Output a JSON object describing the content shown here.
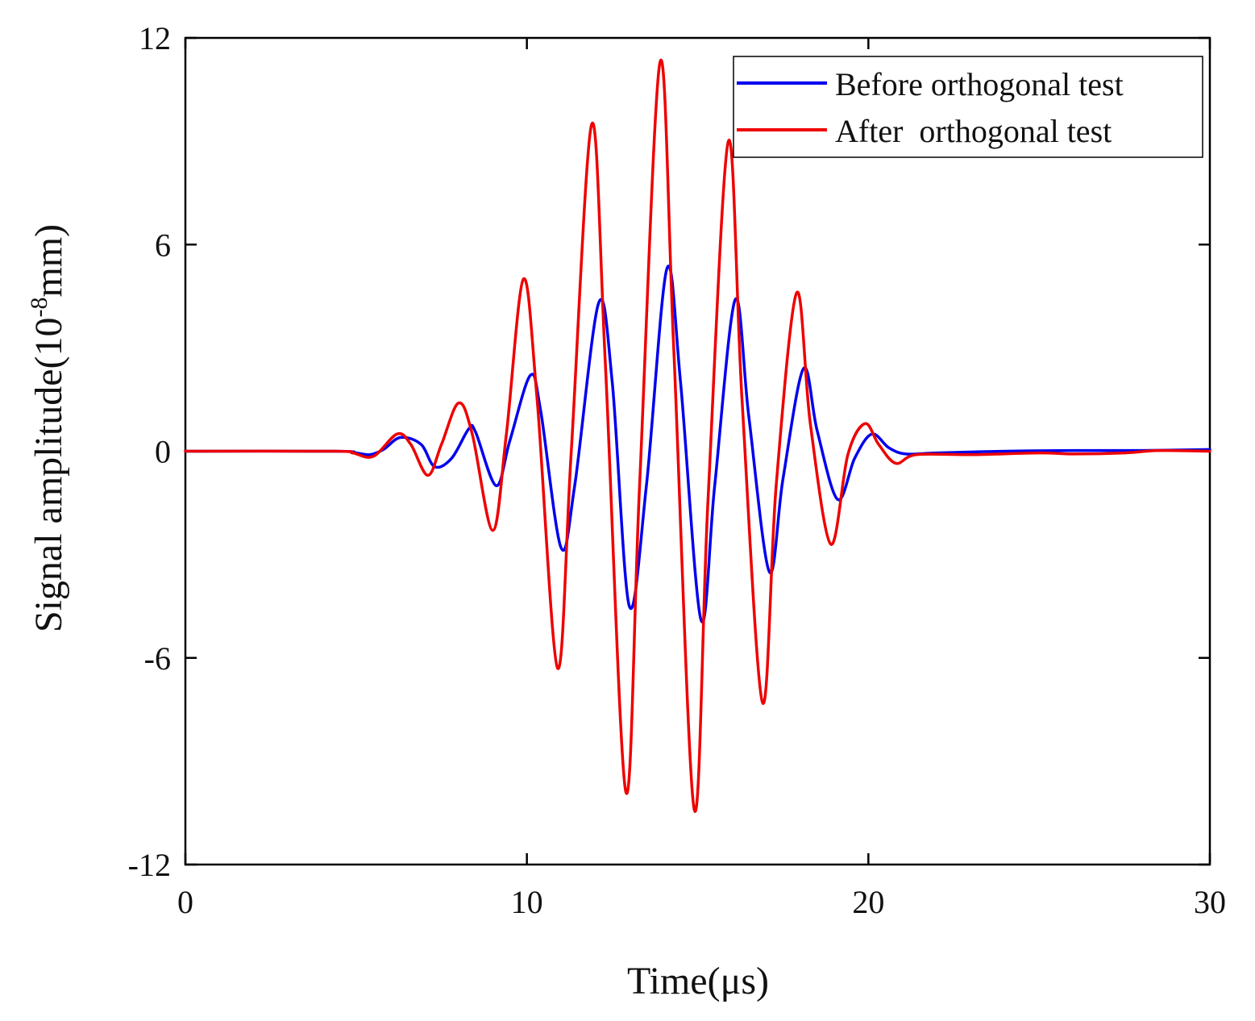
{
  "chart_data": {
    "type": "line",
    "title": "",
    "xlabel": "Time(μs)",
    "ylabel": "Signal amplitude(10",
    "ylabel_sup": "-8",
    "ylabel_tail": "mm)",
    "xlim": [
      0,
      30
    ],
    "ylim": [
      -12,
      12
    ],
    "xticks": [
      0,
      10,
      20,
      30
    ],
    "xtick_labels": [
      "0",
      "10",
      "20",
      "30"
    ],
    "yticks": [
      -12,
      -6,
      0,
      6,
      12
    ],
    "ytick_labels": [
      "-12",
      "-6",
      "0",
      "6",
      "12"
    ],
    "grid": false,
    "legend_position": "top-right",
    "series": [
      {
        "name": "Before orthogonal test",
        "color": "#0000ee",
        "points": [
          [
            0,
            0
          ],
          [
            4.4,
            0
          ],
          [
            5.0,
            -0.05
          ],
          [
            5.4,
            -0.1
          ],
          [
            5.8,
            0.05
          ],
          [
            6.3,
            0.4
          ],
          [
            6.9,
            0.2
          ],
          [
            7.3,
            -0.45
          ],
          [
            7.8,
            -0.2
          ],
          [
            8.3,
            0.65
          ],
          [
            8.5,
            0.55
          ],
          [
            9.1,
            -1.0
          ],
          [
            9.5,
            0.3
          ],
          [
            10.1,
            2.2
          ],
          [
            10.4,
            1.2
          ],
          [
            11.0,
            -2.8
          ],
          [
            11.4,
            -1.0
          ],
          [
            12.1,
            4.3
          ],
          [
            12.5,
            2.0
          ],
          [
            13.0,
            -4.5
          ],
          [
            13.5,
            -1.0
          ],
          [
            14.1,
            5.3
          ],
          [
            14.5,
            2.0
          ],
          [
            15.1,
            -4.9
          ],
          [
            15.5,
            -1.0
          ],
          [
            16.1,
            4.4
          ],
          [
            16.5,
            1.0
          ],
          [
            17.1,
            -3.5
          ],
          [
            17.5,
            -0.8
          ],
          [
            18.1,
            2.4
          ],
          [
            18.5,
            0.6
          ],
          [
            19.1,
            -1.4
          ],
          [
            19.6,
            -0.2
          ],
          [
            20.1,
            0.5
          ],
          [
            20.6,
            0.1
          ],
          [
            21.1,
            -0.08
          ],
          [
            22.0,
            -0.05
          ],
          [
            24.0,
            0
          ],
          [
            26.0,
            0.02
          ],
          [
            28.0,
            0.02
          ],
          [
            30.0,
            0.05
          ]
        ]
      },
      {
        "name": "After  orthogonal test",
        "color": "#ee0000",
        "points": [
          [
            0,
            0
          ],
          [
            4.4,
            0
          ],
          [
            4.9,
            -0.05
          ],
          [
            5.5,
            -0.15
          ],
          [
            6.2,
            0.5
          ],
          [
            6.6,
            0.2
          ],
          [
            7.1,
            -0.7
          ],
          [
            7.5,
            0.2
          ],
          [
            8.0,
            1.4
          ],
          [
            8.4,
            0.5
          ],
          [
            9.0,
            -2.3
          ],
          [
            9.4,
            0.5
          ],
          [
            9.9,
            5.0
          ],
          [
            10.3,
            1.5
          ],
          [
            10.9,
            -6.3
          ],
          [
            11.3,
            0.0
          ],
          [
            11.9,
            9.5
          ],
          [
            12.3,
            2.5
          ],
          [
            12.9,
            -9.9
          ],
          [
            13.3,
            -1.0
          ],
          [
            13.9,
            11.3
          ],
          [
            14.3,
            3.0
          ],
          [
            14.9,
            -10.4
          ],
          [
            15.3,
            -1.5
          ],
          [
            15.9,
            9.0
          ],
          [
            16.3,
            1.5
          ],
          [
            16.9,
            -7.3
          ],
          [
            17.3,
            -1.0
          ],
          [
            17.9,
            4.6
          ],
          [
            18.3,
            0.8
          ],
          [
            18.9,
            -2.7
          ],
          [
            19.4,
            -0.1
          ],
          [
            19.9,
            0.8
          ],
          [
            20.3,
            0.2
          ],
          [
            20.8,
            -0.35
          ],
          [
            21.4,
            -0.1
          ],
          [
            23.0,
            -0.1
          ],
          [
            25.0,
            -0.05
          ],
          [
            26.0,
            -0.08
          ],
          [
            27.5,
            -0.05
          ],
          [
            28.5,
            0.02
          ],
          [
            30.0,
            0.0
          ]
        ]
      }
    ]
  }
}
